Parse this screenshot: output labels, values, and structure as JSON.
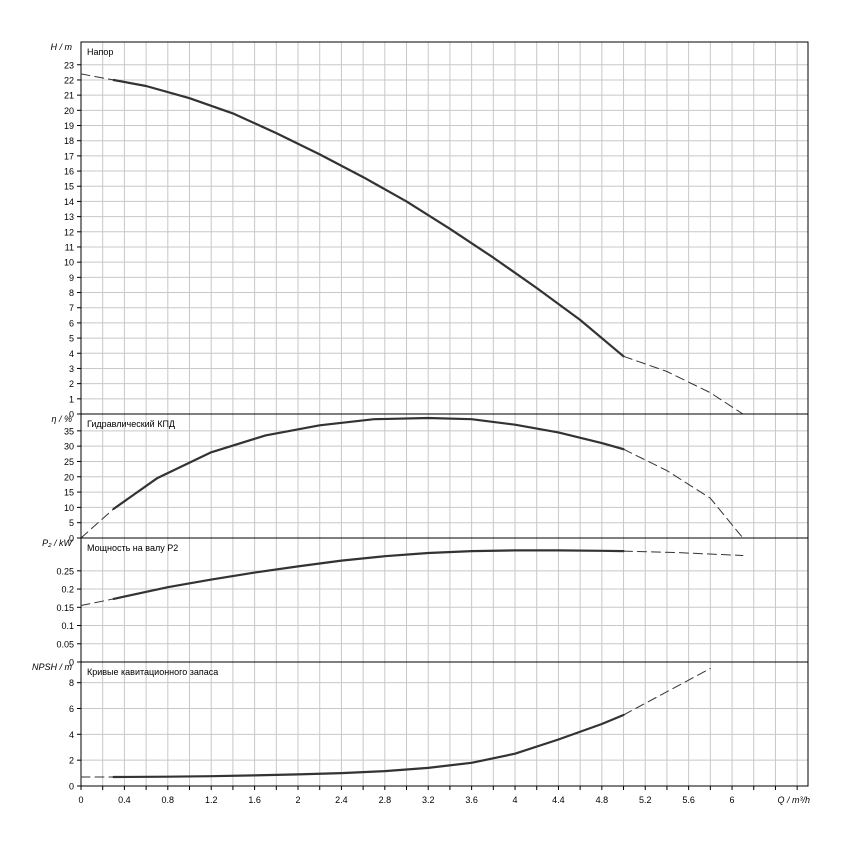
{
  "x_axis": {
    "label": "Q / m³/h",
    "min": 0,
    "max": 6.7,
    "ticks": [
      "0",
      "0.4",
      "0.8",
      "1.2",
      "1.6",
      "2",
      "2.4",
      "2.8",
      "3.2",
      "3.6",
      "4",
      "4.4",
      "4.8",
      "5.2",
      "5.6",
      "6"
    ]
  },
  "chart_data": [
    {
      "type": "line",
      "title": "Напор",
      "ylabel": "H / m",
      "ylim": [
        0,
        24.5
      ],
      "yticks": [
        0,
        1,
        2,
        3,
        4,
        5,
        6,
        7,
        8,
        9,
        10,
        11,
        12,
        13,
        14,
        15,
        16,
        17,
        18,
        19,
        20,
        21,
        22,
        23
      ],
      "series": [
        {
          "style": "solid",
          "x": [
            0.3,
            0.6,
            1.0,
            1.4,
            1.8,
            2.2,
            2.6,
            3.0,
            3.4,
            3.8,
            4.2,
            4.6,
            5.0
          ],
          "y": [
            22.0,
            21.6,
            20.8,
            19.8,
            18.5,
            17.1,
            15.6,
            14.0,
            12.2,
            10.3,
            8.3,
            6.2,
            3.8
          ]
        },
        {
          "style": "dashed",
          "x": [
            0,
            0.3
          ],
          "y": [
            22.4,
            22.0
          ]
        },
        {
          "style": "dashed",
          "x": [
            5.0,
            5.4,
            5.8,
            6.1
          ],
          "y": [
            3.8,
            2.8,
            1.4,
            0.0
          ]
        }
      ]
    },
    {
      "type": "line",
      "title": "Гидравлический КПД",
      "ylabel": "η / %",
      "ylim": [
        0,
        40.5
      ],
      "yticks": [
        0,
        5,
        10,
        15,
        20,
        25,
        30,
        35
      ],
      "series": [
        {
          "style": "solid",
          "x": [
            0.3,
            0.7,
            1.2,
            1.7,
            2.2,
            2.7,
            3.2,
            3.6,
            4.0,
            4.4,
            4.8,
            5.0
          ],
          "y": [
            9.5,
            19.5,
            28,
            33.5,
            36.8,
            38.8,
            39.2,
            38.8,
            37.0,
            34.5,
            31.0,
            29.0
          ]
        },
        {
          "style": "dashed",
          "x": [
            0,
            0.3
          ],
          "y": [
            0,
            9.5
          ]
        },
        {
          "style": "dashed",
          "x": [
            5.0,
            5.4,
            5.8,
            6.1
          ],
          "y": [
            29.0,
            22.0,
            13.0,
            0.0
          ]
        }
      ]
    },
    {
      "type": "line",
      "title": "Мощность на валу P2",
      "ylabel": "P₂ / kW",
      "ylim": [
        0,
        0.34
      ],
      "yticks": [
        0,
        0.05,
        0.1,
        0.15,
        0.2,
        0.25
      ],
      "series": [
        {
          "style": "solid",
          "x": [
            0.3,
            0.8,
            1.2,
            1.6,
            2.0,
            2.4,
            2.8,
            3.2,
            3.6,
            4.0,
            4.4,
            4.8,
            5.0
          ],
          "y": [
            0.173,
            0.205,
            0.226,
            0.245,
            0.262,
            0.278,
            0.29,
            0.299,
            0.304,
            0.306,
            0.306,
            0.305,
            0.304
          ]
        },
        {
          "style": "dashed",
          "x": [
            0,
            0.3
          ],
          "y": [
            0.155,
            0.173
          ]
        },
        {
          "style": "dashed",
          "x": [
            5.0,
            5.5,
            6.1
          ],
          "y": [
            0.304,
            0.3,
            0.292
          ]
        }
      ]
    },
    {
      "type": "line",
      "title": "Кривые кавитационного запаса",
      "ylabel": "NPSH / m",
      "ylim": [
        0,
        9.6
      ],
      "yticks": [
        0,
        2,
        4,
        6,
        8
      ],
      "series": [
        {
          "style": "solid",
          "x": [
            0.3,
            0.8,
            1.2,
            1.6,
            2.0,
            2.4,
            2.8,
            3.2,
            3.6,
            4.0,
            4.4,
            4.8,
            5.0
          ],
          "y": [
            0.7,
            0.72,
            0.76,
            0.82,
            0.9,
            1.0,
            1.15,
            1.4,
            1.8,
            2.5,
            3.6,
            4.8,
            5.5
          ]
        },
        {
          "style": "dashed",
          "x": [
            0,
            0.3
          ],
          "y": [
            0.7,
            0.7
          ]
        },
        {
          "style": "dashed",
          "x": [
            5.0,
            5.4,
            5.8
          ],
          "y": [
            5.5,
            7.3,
            9.1
          ]
        }
      ]
    }
  ]
}
